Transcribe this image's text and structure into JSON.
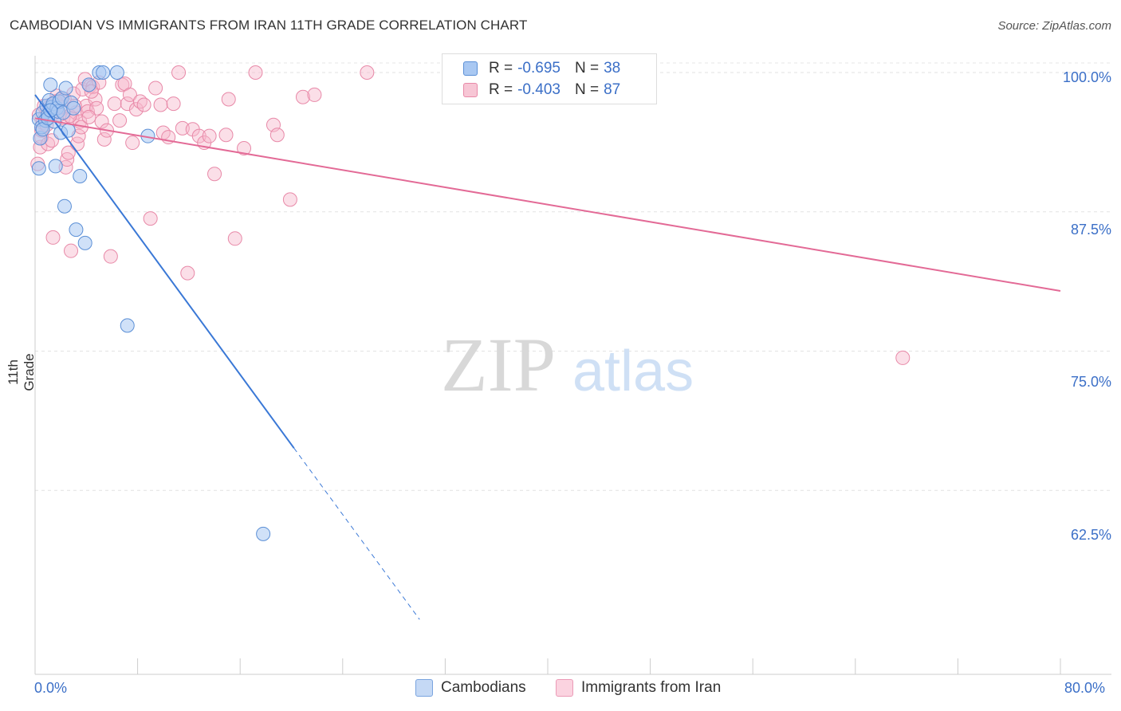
{
  "header": {
    "title": "CAMBODIAN VS IMMIGRANTS FROM IRAN 11TH GRADE CORRELATION CHART",
    "source": "Source: ZipAtlas.com"
  },
  "legend": {
    "rows": [
      {
        "r_label": "R =",
        "r_value": "-0.695",
        "n_label": "N =",
        "n_value": "38"
      },
      {
        "r_label": "R =",
        "r_value": "-0.403",
        "n_label": "N =",
        "n_value": "87"
      }
    ]
  },
  "bottom_legend": [
    "Cambodians",
    "Immigrants from Iran"
  ],
  "watermark": {
    "zip": "ZIP",
    "atlas": "atlas"
  },
  "colors": {
    "blue_fill": "#a9c8f2",
    "blue_stroke": "#5b8fd6",
    "blue_line": "#3a78d6",
    "pink_fill": "#f7b8cb",
    "pink_stroke": "#e889a8",
    "pink_line": "#e36a96",
    "tick_text": "#3b6fc7"
  },
  "chart_data": {
    "type": "scatter",
    "title": "CAMBODIAN VS IMMIGRANTS FROM IRAN 11TH GRADE CORRELATION CHART",
    "xlabel": "",
    "ylabel": "11th Grade",
    "xlim": [
      0,
      80
    ],
    "ylim": [
      46,
      101.5
    ],
    "x_tick_labels": [
      "0.0%",
      "80.0%"
    ],
    "y_ticks": [
      100.0,
      87.5,
      75.0,
      62.5
    ],
    "y_tick_labels": [
      "100.0%",
      "87.5%",
      "75.0%",
      "62.5%"
    ],
    "series": [
      {
        "name": "Cambodians",
        "r": -0.695,
        "n": 38,
        "trend": {
          "x0": 0.0,
          "y0": 98.0,
          "x1": 20.2,
          "y1": 66.3,
          "dash_to_x": 30.0
        },
        "points": [
          [
            0.3,
            95.8
          ],
          [
            0.4,
            94.1
          ],
          [
            0.5,
            95.1
          ],
          [
            0.6,
            96.4
          ],
          [
            0.8,
            95.7
          ],
          [
            0.9,
            97.0
          ],
          [
            1.0,
            96.2
          ],
          [
            1.1,
            97.5
          ],
          [
            1.2,
            98.9
          ],
          [
            1.3,
            96.9
          ],
          [
            1.4,
            97.2
          ],
          [
            1.5,
            95.6
          ],
          [
            1.6,
            91.6
          ],
          [
            1.7,
            96.8
          ],
          [
            1.8,
            96.5
          ],
          [
            1.9,
            97.4
          ],
          [
            2.0,
            94.6
          ],
          [
            2.1,
            97.7
          ],
          [
            2.2,
            96.4
          ],
          [
            2.3,
            88.0
          ],
          [
            2.4,
            98.6
          ],
          [
            2.6,
            94.8
          ],
          [
            2.8,
            97.3
          ],
          [
            3.0,
            96.8
          ],
          [
            3.2,
            85.9
          ],
          [
            3.5,
            90.7
          ],
          [
            3.9,
            84.7
          ],
          [
            4.2,
            98.9
          ],
          [
            5.0,
            100.0
          ],
          [
            5.3,
            100.0
          ],
          [
            6.4,
            100.0
          ],
          [
            7.2,
            77.3
          ],
          [
            8.8,
            94.3
          ],
          [
            17.8,
            58.6
          ],
          [
            0.3,
            91.4
          ],
          [
            0.6,
            94.9
          ],
          [
            1.0,
            95.9
          ],
          [
            1.2,
            96.6
          ]
        ]
      },
      {
        "name": "Immigrants from Iran",
        "r": -0.403,
        "n": 87,
        "trend": {
          "x0": 0.0,
          "y0": 95.9,
          "x1": 80.0,
          "y1": 80.4
        },
        "points": [
          [
            0.2,
            91.8
          ],
          [
            0.4,
            93.3
          ],
          [
            0.5,
            94.2
          ],
          [
            0.6,
            95.5
          ],
          [
            0.8,
            96.1
          ],
          [
            1.0,
            93.6
          ],
          [
            1.2,
            97.1
          ],
          [
            1.4,
            85.2
          ],
          [
            1.5,
            96.8
          ],
          [
            1.7,
            97.9
          ],
          [
            1.8,
            96.5
          ],
          [
            2.0,
            97.6
          ],
          [
            2.2,
            95.9
          ],
          [
            2.4,
            91.5
          ],
          [
            2.5,
            92.2
          ],
          [
            2.6,
            92.8
          ],
          [
            2.8,
            84.0
          ],
          [
            2.9,
            95.9
          ],
          [
            3.0,
            98.1
          ],
          [
            3.2,
            96.4
          ],
          [
            3.3,
            93.6
          ],
          [
            3.5,
            95.6
          ],
          [
            3.7,
            98.5
          ],
          [
            3.9,
            99.4
          ],
          [
            4.0,
            97.0
          ],
          [
            4.1,
            96.5
          ],
          [
            4.3,
            98.8
          ],
          [
            4.5,
            98.7
          ],
          [
            4.7,
            97.6
          ],
          [
            4.8,
            96.8
          ],
          [
            5.0,
            99.1
          ],
          [
            5.2,
            95.6
          ],
          [
            5.4,
            94.0
          ],
          [
            5.6,
            94.8
          ],
          [
            5.9,
            83.5
          ],
          [
            6.2,
            97.2
          ],
          [
            6.6,
            95.7
          ],
          [
            6.8,
            98.9
          ],
          [
            7.0,
            99.0
          ],
          [
            7.2,
            97.2
          ],
          [
            7.4,
            98.0
          ],
          [
            7.6,
            93.7
          ],
          [
            7.9,
            96.7
          ],
          [
            8.2,
            97.4
          ],
          [
            8.5,
            97.1
          ],
          [
            9.0,
            86.9
          ],
          [
            9.4,
            98.6
          ],
          [
            9.8,
            97.1
          ],
          [
            10.0,
            94.6
          ],
          [
            10.4,
            94.2
          ],
          [
            10.8,
            97.2
          ],
          [
            11.2,
            100.0
          ],
          [
            11.5,
            95.0
          ],
          [
            11.9,
            82.0
          ],
          [
            12.3,
            94.9
          ],
          [
            12.8,
            94.3
          ],
          [
            13.2,
            93.7
          ],
          [
            13.6,
            94.3
          ],
          [
            14.0,
            90.9
          ],
          [
            14.9,
            94.4
          ],
          [
            15.1,
            97.6
          ],
          [
            15.6,
            85.1
          ],
          [
            16.3,
            93.2
          ],
          [
            17.2,
            100.0
          ],
          [
            18.6,
            95.3
          ],
          [
            18.9,
            94.4
          ],
          [
            19.9,
            88.6
          ],
          [
            20.9,
            97.8
          ],
          [
            21.8,
            98.0
          ],
          [
            25.9,
            100.0
          ],
          [
            67.7,
            74.4
          ],
          [
            0.3,
            96.2
          ],
          [
            0.5,
            94.8
          ],
          [
            0.7,
            97.0
          ],
          [
            0.9,
            95.3
          ],
          [
            1.1,
            96.9
          ],
          [
            1.3,
            93.9
          ],
          [
            1.6,
            97.4
          ],
          [
            1.9,
            96.2
          ],
          [
            2.1,
            96.9
          ],
          [
            2.3,
            97.6
          ],
          [
            2.7,
            96.1
          ],
          [
            3.1,
            97.0
          ],
          [
            3.4,
            94.3
          ],
          [
            3.6,
            95.1
          ],
          [
            4.2,
            96.0
          ],
          [
            4.4,
            98.3
          ]
        ]
      }
    ]
  }
}
